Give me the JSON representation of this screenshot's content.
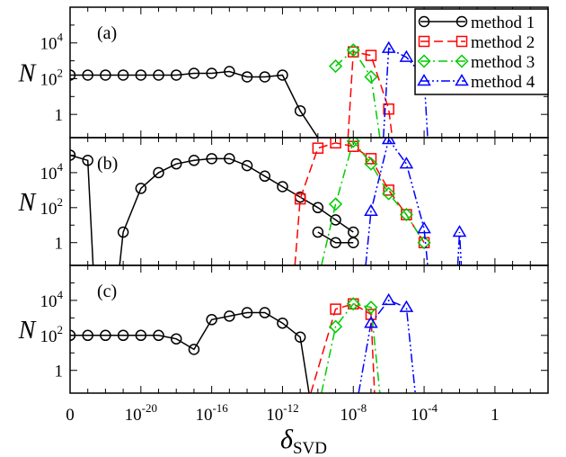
{
  "figure": {
    "xlabel_main": "δ",
    "xlabel_sub": "SVD",
    "ylabel": "N",
    "x_tick_labels": [
      {
        "value": -24,
        "main": "0",
        "exp": ""
      },
      {
        "value": -20,
        "main": "10",
        "exp": "-20"
      },
      {
        "value": -16,
        "main": "10",
        "exp": "-16"
      },
      {
        "value": -12,
        "main": "10",
        "exp": "-12"
      },
      {
        "value": -8,
        "main": "10",
        "exp": "-8"
      },
      {
        "value": -4,
        "main": "10",
        "exp": "-4"
      },
      {
        "value": 0,
        "main": "1",
        "exp": ""
      }
    ],
    "y_tick_labels": [
      {
        "value": 4,
        "main": "10",
        "exp": "4"
      },
      {
        "value": 2,
        "main": "10",
        "exp": "2"
      },
      {
        "value": 0,
        "main": "1",
        "exp": ""
      }
    ],
    "legend": [
      "method 1",
      "method 2",
      "method 3",
      "method 4"
    ]
  },
  "chart_data": [
    {
      "type": "line",
      "panel_label": "(a)",
      "xlabel": "δSVD",
      "ylabel": "N",
      "x_scale": "log",
      "y_scale": "log",
      "xlim_log10": [
        -24,
        3
      ],
      "ylim_log10": [
        -1.3,
        6
      ],
      "series": [
        {
          "name": "method 1",
          "color": "#000000",
          "marker": "circle",
          "dash": "solid",
          "x_log10": [
            -24,
            -23,
            -22,
            -21,
            -20,
            -19,
            -18,
            -17,
            -16,
            -15,
            -14,
            -13,
            -12,
            -11,
            -10
          ],
          "y_log10": [
            2.2,
            2.2,
            2.2,
            2.2,
            2.2,
            2.2,
            2.2,
            2.3,
            2.3,
            2.4,
            2.1,
            2.1,
            2.2,
            0.2,
            -1.3
          ]
        },
        {
          "name": "method 2",
          "color": "#ff0000",
          "marker": "square",
          "dash": "dashed",
          "x_log10": [
            -8.3,
            -8,
            -7,
            -6,
            -5.8
          ],
          "y_log10": [
            -1.3,
            3.5,
            3.3,
            0.3,
            -1.3
          ]
        },
        {
          "name": "method 3",
          "color": "#00cc00",
          "marker": "diamond",
          "dash": "dashdot",
          "x_log10": [
            -9,
            -8,
            -7,
            -6.5
          ],
          "y_log10": [
            2.7,
            3.6,
            2.1,
            -1.3
          ]
        },
        {
          "name": "method 4",
          "color": "#0000ff",
          "marker": "triangle",
          "dash": "dashdotdot",
          "x_log10": [
            -6.3,
            -6,
            -5,
            -4,
            -3.8
          ],
          "y_log10": [
            -1.3,
            3.7,
            3.2,
            2.1,
            -1.3
          ]
        }
      ]
    },
    {
      "type": "line",
      "panel_label": "(b)",
      "xlabel": "δSVD",
      "ylabel": "N",
      "x_scale": "log",
      "y_scale": "log",
      "xlim_log10": [
        -24,
        3
      ],
      "ylim_log10": [
        -1.3,
        6
      ],
      "series": [
        {
          "name": "method 1",
          "color": "#000000",
          "marker": "circle",
          "dash": "solid",
          "x_log10": [
            -24,
            -23,
            -22.7
          ],
          "y_log10": [
            5.0,
            4.7,
            -1.3
          ]
        },
        {
          "name": "method 1",
          "color": "#000000",
          "marker": "circle",
          "dash": "solid",
          "x_log10": [
            -21.2,
            -21,
            -20,
            -19,
            -18,
            -17,
            -16,
            -15,
            -14,
            -13,
            -12,
            -11,
            -10,
            -9,
            -8
          ],
          "y_log10": [
            -1.3,
            0.6,
            3.1,
            4.0,
            4.5,
            4.7,
            4.8,
            4.8,
            4.4,
            3.8,
            3.2,
            2.6,
            2.0,
            1.3,
            0.6
          ]
        },
        {
          "name": "method 1",
          "color": "#000000",
          "marker": "circle",
          "dash": "solid",
          "x_log10": [
            -10,
            -9,
            -8
          ],
          "y_log10": [
            0.6,
            0.0,
            0.0
          ]
        },
        {
          "name": "method 2",
          "color": "#ff0000",
          "marker": "square",
          "dash": "dashed",
          "x_log10": [
            -11.3,
            -11,
            -10,
            -9,
            -8,
            -7,
            -6,
            -5,
            -4
          ],
          "y_log10": [
            -1.3,
            2.5,
            5.4,
            5.7,
            5.5,
            4.8,
            3.0,
            1.6,
            0.0
          ]
        },
        {
          "name": "method 3",
          "color": "#00cc00",
          "marker": "diamond",
          "dash": "dashdot",
          "x_log10": [
            -9.8,
            -9,
            -8,
            -7,
            -6,
            -5,
            -4
          ],
          "y_log10": [
            -1.3,
            2.2,
            5.8,
            4.5,
            2.8,
            1.6,
            0.0
          ]
        },
        {
          "name": "method 4",
          "color": "#0000ff",
          "marker": "triangle",
          "dash": "dashdotdot",
          "x_log10": [
            -7.3,
            -7,
            -6,
            -5,
            -4,
            -3.8
          ],
          "y_log10": [
            -1.3,
            1.8,
            5.9,
            4.5,
            0.8,
            -1.3
          ]
        },
        {
          "name": "method 4",
          "color": "#0000ff",
          "marker": "triangle",
          "dash": "dashdotdot",
          "x_log10": [
            -2.1,
            -2,
            -1.9
          ],
          "y_log10": [
            -1.3,
            0.6,
            -1.3
          ]
        }
      ]
    },
    {
      "type": "line",
      "panel_label": "(c)",
      "xlabel": "δSVD",
      "ylabel": "N",
      "x_scale": "log",
      "y_scale": "log",
      "xlim_log10": [
        -24,
        3
      ],
      "ylim_log10": [
        -1.3,
        6
      ],
      "series": [
        {
          "name": "method 1",
          "color": "#000000",
          "marker": "circle",
          "dash": "solid",
          "x_log10": [
            -24,
            -23,
            -22,
            -21,
            -20,
            -19,
            -18,
            -17,
            -16,
            -15,
            -14,
            -13,
            -12,
            -11,
            -10.5
          ],
          "y_log10": [
            2.0,
            2.0,
            2.0,
            2.0,
            2.0,
            2.0,
            1.8,
            1.2,
            2.9,
            3.1,
            3.3,
            3.3,
            2.7,
            1.9,
            -1.3
          ]
        },
        {
          "name": "method 2",
          "color": "#ff0000",
          "marker": "square",
          "dash": "dashed",
          "x_log10": [
            -10.4,
            -9,
            -8,
            -7,
            -6.8
          ],
          "y_log10": [
            -1.3,
            3.5,
            3.8,
            3.2,
            -1.3
          ]
        },
        {
          "name": "method 3",
          "color": "#00cc00",
          "marker": "diamond",
          "dash": "dashdot",
          "x_log10": [
            -9.8,
            -9,
            -8,
            -7,
            -6.5
          ],
          "y_log10": [
            -1.3,
            2.5,
            3.8,
            3.6,
            -1.3
          ]
        },
        {
          "name": "method 4",
          "color": "#0000ff",
          "marker": "triangle",
          "dash": "dashdotdot",
          "x_log10": [
            -7.7,
            -7,
            -6,
            -5,
            -4.5
          ],
          "y_log10": [
            -1.3,
            2.7,
            4.0,
            3.6,
            -1.3
          ]
        }
      ]
    }
  ]
}
